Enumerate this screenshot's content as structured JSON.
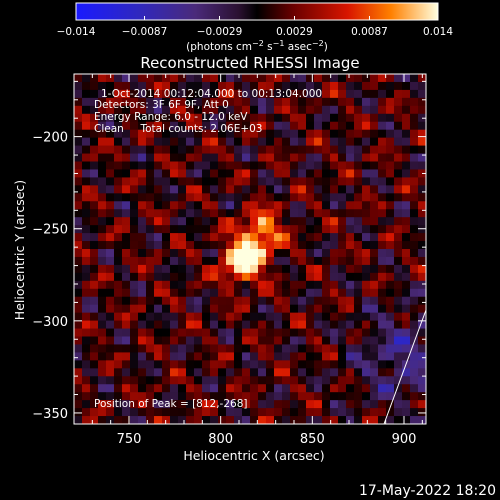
{
  "chart_data": {
    "type": "heatmap",
    "title": "Reconstructed RHESSI Image",
    "xlabel": "Heliocentric X (arcsec)",
    "ylabel": "Heliocentric Y (arcsec)",
    "xlim": [
      720,
      912
    ],
    "ylim": [
      -356,
      -166
    ],
    "xticks": [
      {
        "value": 750,
        "label": "750"
      },
      {
        "value": 800,
        "label": "800"
      },
      {
        "value": 850,
        "label": "850"
      },
      {
        "value": 900,
        "label": "900"
      }
    ],
    "yticks": [
      {
        "value": -200,
        "label": "−200"
      },
      {
        "value": -250,
        "label": "−250"
      },
      {
        "value": -300,
        "label": "−300"
      },
      {
        "value": -350,
        "label": "−350"
      }
    ],
    "colorbar": {
      "range": [
        -0.014,
        0.014
      ],
      "ticks": [
        {
          "value": -0.014,
          "label": "−0.014"
        },
        {
          "value": -0.0087,
          "label": "−0.0087"
        },
        {
          "value": -0.0029,
          "label": "−0.0029"
        },
        {
          "value": 0.0029,
          "label": "0.0029"
        },
        {
          "value": 0.0087,
          "label": "0.0087"
        },
        {
          "value": 0.014,
          "label": "0.014"
        }
      ],
      "units_main": "(photons cm",
      "units_exp1": "−2",
      "units_mid1": " s",
      "units_exp2": "−1",
      "units_mid2": " asec",
      "units_exp3": "−2",
      "units_end": ")"
    },
    "annotations": {
      "time_range": "1-Oct-2014 00:12:04.000 to 00:13:04.000",
      "detectors": "Detectors: 3F 6F 9F, Att 0",
      "energy": "Energy Range: 6.0 - 12.0 keV",
      "clean": "Clean     Total counts: 2.06E+03",
      "peak": "Position of Peak = [812,-268]"
    },
    "peaks": [
      {
        "x": 812,
        "y": -268,
        "v": 0.014
      },
      {
        "x": 822,
        "y": -252,
        "v": 0.0105
      }
    ],
    "colors": {
      "background": "#000000",
      "axes": "#ffffff"
    }
  },
  "footer": {
    "date": "17-May-2022 18:20"
  }
}
